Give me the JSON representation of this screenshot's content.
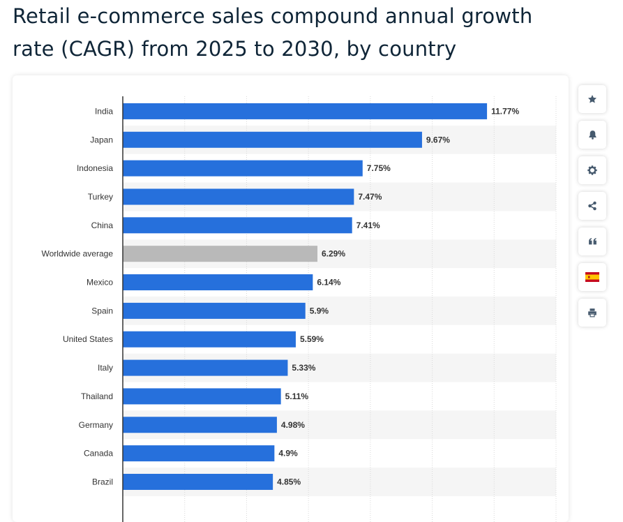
{
  "title": "Retail e-commerce sales compound annual growth rate (CAGR) from 2025 to 2030, by country",
  "colors": {
    "bar": "#2670dc",
    "highlight_bar": "#b9b9b9",
    "label_text": "#333333",
    "value_text": "#333333",
    "title_text": "#0f2537",
    "icon": "#465a6e"
  },
  "toolbar": {
    "buttons": [
      {
        "name": "favorite-button",
        "icon": "star-icon"
      },
      {
        "name": "notification-button",
        "icon": "bell-icon"
      },
      {
        "name": "settings-button",
        "icon": "gear-icon"
      },
      {
        "name": "share-button",
        "icon": "share-icon"
      },
      {
        "name": "cite-button",
        "icon": "quote-icon"
      },
      {
        "name": "language-button",
        "icon": "spain-flag-icon"
      },
      {
        "name": "print-button",
        "icon": "printer-icon"
      }
    ]
  },
  "chart_data": {
    "type": "bar",
    "orientation": "horizontal",
    "title": "Retail e-commerce sales compound annual growth rate (CAGR) from 2025 to 2030, by country",
    "xlabel": "",
    "ylabel": "",
    "xlim": [
      0,
      14
    ],
    "grid": true,
    "categories": [
      "India",
      "Japan",
      "Indonesia",
      "Turkey",
      "China",
      "Worldwide average",
      "Mexico",
      "Spain",
      "United States",
      "Italy",
      "Thailand",
      "Germany",
      "Canada",
      "Brazil"
    ],
    "values": [
      11.77,
      9.67,
      7.75,
      7.47,
      7.41,
      6.29,
      6.14,
      5.9,
      5.59,
      5.33,
      5.11,
      4.98,
      4.9,
      4.85
    ],
    "value_labels": [
      "11.77%",
      "9.67%",
      "7.75%",
      "7.47%",
      "7.41%",
      "6.29%",
      "6.14%",
      "5.9%",
      "5.59%",
      "5.33%",
      "5.11%",
      "4.98%",
      "4.9%",
      "4.85%"
    ],
    "highlighted": [
      "Worldwide average"
    ]
  }
}
